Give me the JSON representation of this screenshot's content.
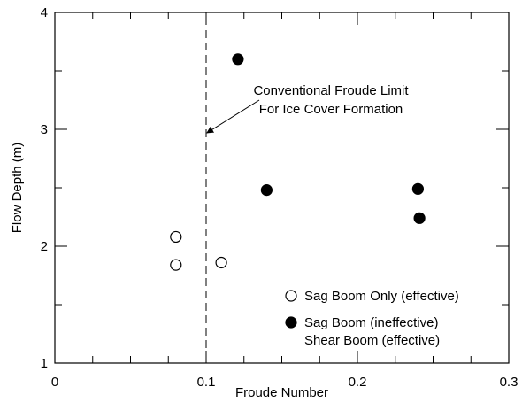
{
  "chart_data": {
    "type": "scatter",
    "title": "",
    "xlabel": "Froude Number",
    "ylabel": "Flow Depth (m)",
    "xlim": [
      0,
      0.3
    ],
    "ylim": [
      1,
      4
    ],
    "x_ticks": [
      0,
      0.1,
      0.2,
      0.3
    ],
    "x_tick_labels": [
      "0",
      "0.1",
      "0.2",
      "0.3"
    ],
    "y_ticks": [
      1,
      2,
      3,
      4
    ],
    "y_tick_labels": [
      "1",
      "2",
      "3",
      "4"
    ],
    "grid": false,
    "series": [
      {
        "name": "Sag Boom Only (effective)",
        "marker": "open-circle",
        "points": [
          {
            "x": 0.08,
            "y": 2.08
          },
          {
            "x": 0.08,
            "y": 1.84
          },
          {
            "x": 0.11,
            "y": 1.86
          }
        ]
      },
      {
        "name": "Sag Boom (ineffective)",
        "name_line2": "Shear Boom (effective)",
        "marker": "filled-circle",
        "points": [
          {
            "x": 0.121,
            "y": 3.6
          },
          {
            "x": 0.14,
            "y": 2.48
          },
          {
            "x": 0.24,
            "y": 2.49
          },
          {
            "x": 0.241,
            "y": 2.24
          }
        ]
      }
    ],
    "reference_line": {
      "x": 0.1,
      "style": "dashed"
    },
    "annotation": {
      "line1": "Conventional Froude Limit",
      "line2": "For Ice Cover Formation",
      "arrow_to": {
        "x": 0.1,
        "y": 2.97
      }
    },
    "legend_position": "bottom-right",
    "colors": {
      "axis": "#000000",
      "marker_fill": "#000000",
      "marker_open_fill": "#ffffff"
    }
  }
}
